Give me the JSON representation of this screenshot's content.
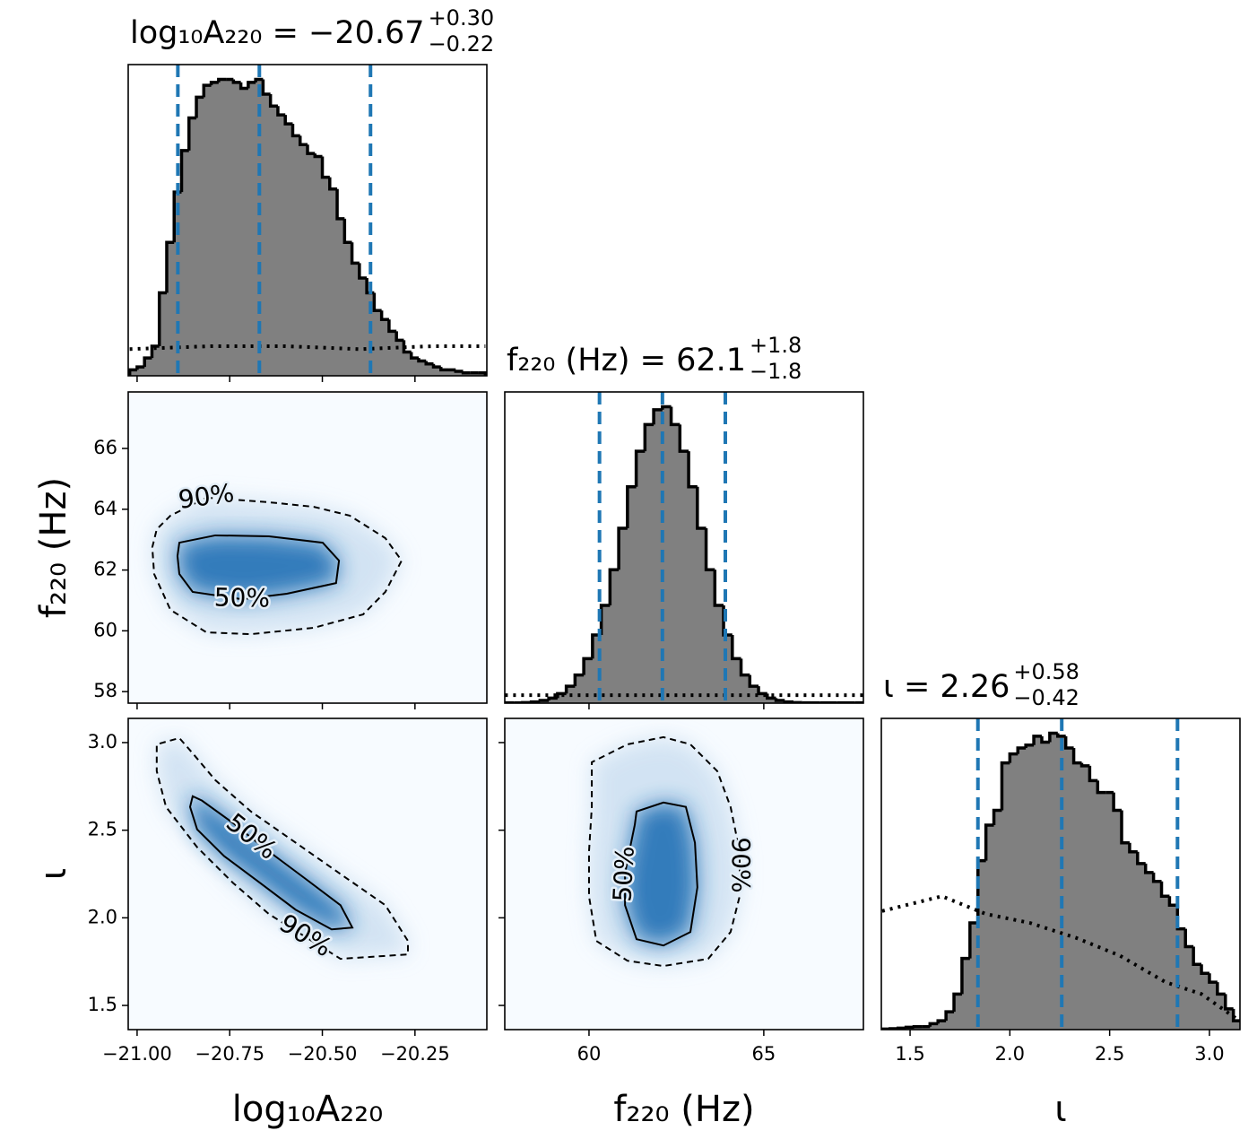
{
  "chart_data": [
    {
      "type": "histogram",
      "title": "log₁₀A₂₂₀ = −20.67",
      "title_upper": "+0.30",
      "title_lower": "−0.22",
      "bins": [
        -21.02,
        -21.0,
        -20.98,
        -20.96,
        -20.94,
        -20.92,
        -20.9,
        -20.88,
        -20.86,
        -20.84,
        -20.82,
        -20.8,
        -20.78,
        -20.76,
        -20.74,
        -20.72,
        -20.7,
        -20.68,
        -20.66,
        -20.64,
        -20.62,
        -20.6,
        -20.58,
        -20.56,
        -20.54,
        -20.52,
        -20.5,
        -20.48,
        -20.46,
        -20.44,
        -20.42,
        -20.4,
        -20.38,
        -20.36,
        -20.34,
        -20.32,
        -20.3,
        -20.28,
        -20.26,
        -20.24,
        -20.22,
        -20.2,
        -20.18,
        -20.16,
        -20.14,
        -20.12,
        -20.1,
        -20.08,
        -20.06
      ],
      "values": [
        0.02,
        0.03,
        0.06,
        0.1,
        0.28,
        0.45,
        0.62,
        0.76,
        0.87,
        0.94,
        0.98,
        0.99,
        1.0,
        1.0,
        0.99,
        0.97,
        0.99,
        1.0,
        0.95,
        0.91,
        0.88,
        0.85,
        0.81,
        0.78,
        0.75,
        0.74,
        0.67,
        0.63,
        0.53,
        0.45,
        0.38,
        0.33,
        0.28,
        0.22,
        0.19,
        0.15,
        0.12,
        0.08,
        0.06,
        0.05,
        0.04,
        0.03,
        0.02,
        0.02,
        0.015,
        0.01,
        0.01,
        0.01
      ],
      "color": "#808080",
      "edgecolor": "#000000",
      "quantiles": [
        -20.89,
        -20.67,
        -20.37
      ],
      "quantile_color": "#1f77b4",
      "prior": {
        "x": [
          -21.02,
          -20.8,
          -20.6,
          -20.4,
          -20.2,
          -20.06
        ],
        "values": [
          0.09,
          0.1,
          0.1,
          0.09,
          0.1,
          0.1
        ]
      },
      "xlim": [
        -21.024,
        -20.056
      ],
      "ylim": [
        0,
        1.05
      ],
      "xticks": [
        -21,
        -20.75,
        -20.5,
        -20.25
      ]
    },
    {
      "type": "contour",
      "background": "#f7fbff",
      "xlim": [
        -21.024,
        -20.056
      ],
      "ylim": [
        57.62,
        67.86
      ],
      "xticks": [
        -21,
        -20.75,
        -20.5,
        -20.25
      ],
      "yticks": [
        58,
        60,
        62,
        64,
        66
      ],
      "ylabel": "f₂₂₀ (Hz)",
      "contours": [
        {
          "label": "90%",
          "linestyle": "dashed",
          "fill": "#cfe1f2",
          "x": [
            -20.813,
            -20.644,
            -20.523,
            -20.426,
            -20.33,
            -20.286,
            -20.33,
            -20.39,
            -20.523,
            -20.693,
            -20.813,
            -20.91,
            -20.954,
            -20.959,
            -20.947,
            -20.91
          ],
          "y": [
            64.38,
            64.23,
            64.08,
            63.79,
            63.05,
            62.31,
            61.28,
            60.54,
            60.1,
            59.89,
            59.95,
            60.69,
            61.87,
            62.75,
            63.34,
            63.79
          ]
        },
        {
          "label": "50%",
          "linestyle": "solid",
          "fill": "#2171b5",
          "x": [
            -20.717,
            -20.85,
            -20.886,
            -20.891,
            -20.886,
            -20.789,
            -20.644,
            -20.499,
            -20.455,
            -20.463,
            -20.596
          ],
          "y": [
            61.04,
            61.28,
            61.87,
            62.46,
            62.9,
            63.14,
            63.11,
            62.9,
            62.31,
            61.57,
            61.22
          ]
        }
      ]
    },
    {
      "type": "histogram",
      "title": "f₂₂₀ (Hz) = 62.1",
      "title_upper": "+1.8",
      "title_lower": "−1.8",
      "bins": [
        57.6,
        57.85,
        58.1,
        58.35,
        58.6,
        58.85,
        59.1,
        59.35,
        59.6,
        59.85,
        60.1,
        60.35,
        60.6,
        60.85,
        61.1,
        61.35,
        61.6,
        61.85,
        62.1,
        62.35,
        62.6,
        62.85,
        63.1,
        63.35,
        63.6,
        63.85,
        64.1,
        64.35,
        64.6,
        64.85,
        65.1,
        65.35,
        65.6,
        65.85,
        66.1,
        66.35,
        66.6,
        66.85,
        67.1,
        67.35,
        67.6,
        67.85
      ],
      "values": [
        0.001,
        0.001,
        0.002,
        0.004,
        0.009,
        0.017,
        0.032,
        0.057,
        0.095,
        0.15,
        0.23,
        0.33,
        0.45,
        0.59,
        0.73,
        0.85,
        0.94,
        0.99,
        1.0,
        0.94,
        0.85,
        0.73,
        0.59,
        0.45,
        0.33,
        0.23,
        0.15,
        0.095,
        0.057,
        0.032,
        0.017,
        0.009,
        0.004,
        0.002,
        0.001,
        0.001,
        0.001,
        0.001,
        0.001,
        0.001,
        0.001
      ],
      "color": "#808080",
      "edgecolor": "#000000",
      "quantiles": [
        60.3,
        62.1,
        63.9
      ],
      "quantile_color": "#1f77b4",
      "prior": {
        "x": [
          57.6,
          67.85
        ],
        "values": [
          0.027,
          0.027
        ]
      },
      "xlim": [
        57.59,
        67.85
      ],
      "ylim": [
        0,
        1.05
      ],
      "xticks": [
        60,
        65
      ]
    },
    {
      "type": "contour",
      "background": "#f7fbff",
      "xlim": [
        -21.024,
        -20.056
      ],
      "ylim": [
        1.362,
        3.138
      ],
      "xticks": [
        {
          "value": -21,
          "label": "−21.00"
        },
        {
          "value": -20.75,
          "label": "−20.75"
        },
        {
          "value": -20.5,
          "label": "−20.50"
        },
        {
          "value": -20.25,
          "label": "−20.25"
        }
      ],
      "yticks": [
        1.5,
        {
          "value": 2,
          "label": "2.0"
        },
        2.5,
        {
          "value": 3,
          "label": "3.0"
        }
      ],
      "xlabel": "log₁₀A₂₂₀",
      "ylabel": "ι",
      "contours": [
        {
          "label": "90%",
          "linestyle": "dashed",
          "fill": "#cfe1f2",
          "x": [
            -20.547,
            -20.644,
            -20.741,
            -20.838,
            -20.922,
            -20.947,
            -20.947,
            -20.886,
            -20.85,
            -20.789,
            -20.693,
            -20.572,
            -20.451,
            -20.33,
            -20.269,
            -20.269,
            -20.378,
            -20.451
          ],
          "y": [
            1.893,
            2.021,
            2.199,
            2.403,
            2.633,
            2.837,
            2.99,
            3.026,
            2.939,
            2.786,
            2.607,
            2.429,
            2.25,
            2.072,
            1.868,
            1.791,
            1.776,
            1.766
          ]
        },
        {
          "label": "50%",
          "linestyle": "solid",
          "fill": "#2171b5",
          "x": [
            -20.693,
            -20.644,
            -20.547,
            -20.451,
            -20.419,
            -20.475,
            -20.572,
            -20.668,
            -20.765,
            -20.838,
            -20.857,
            -20.85,
            -20.825,
            -20.741
          ],
          "y": [
            2.459,
            2.378,
            2.225,
            2.072,
            1.944,
            1.934,
            2.046,
            2.199,
            2.352,
            2.505,
            2.633,
            2.694,
            2.669,
            2.541
          ]
        }
      ]
    },
    {
      "type": "contour",
      "background": "#f7fbff",
      "xlim": [
        57.59,
        67.85
      ],
      "ylim": [
        1.362,
        3.138
      ],
      "xticks": [
        60,
        65
      ],
      "yticks": [
        1.5,
        2,
        2.5,
        3
      ],
      "xlabel": "f₂₂₀ (Hz)",
      "contours": [
        {
          "label": "90%",
          "linestyle": "dashed",
          "fill": "#cfe1f2",
          "x": [
            64.31,
            64.31,
            64.05,
            63.41,
            62.13,
            61.1,
            60.21,
            60.0,
            60.0,
            60.08,
            60.08,
            61.1,
            62.13,
            62.9,
            63.67,
            64.05,
            64.31
          ],
          "y": [
            2.301,
            2.123,
            1.919,
            1.766,
            1.725,
            1.755,
            1.868,
            2.123,
            2.378,
            2.633,
            2.888,
            2.99,
            3.031,
            2.99,
            2.837,
            2.633,
            2.378
          ]
        },
        {
          "label": "50%",
          "linestyle": "solid",
          "fill": "#2171b5",
          "x": [
            61.03,
            61.03,
            61.36,
            62.13,
            62.9,
            63.1,
            63.03,
            62.77,
            62.13,
            61.36,
            61.31,
            61.1
          ],
          "y": [
            2.25,
            2.072,
            1.878,
            1.842,
            1.919,
            2.174,
            2.429,
            2.633,
            2.658,
            2.607,
            2.531,
            2.327
          ]
        }
      ]
    },
    {
      "type": "histogram",
      "title": "ι = 2.26",
      "title_upper": "+0.58",
      "title_lower": "−0.42",
      "bins": [
        1.36,
        1.4,
        1.44,
        1.48,
        1.52,
        1.56,
        1.6,
        1.64,
        1.68,
        1.72,
        1.76,
        1.8,
        1.84,
        1.88,
        1.92,
        1.96,
        2.0,
        2.04,
        2.08,
        2.12,
        2.16,
        2.2,
        2.24,
        2.28,
        2.32,
        2.36,
        2.4,
        2.44,
        2.48,
        2.52,
        2.56,
        2.6,
        2.64,
        2.68,
        2.72,
        2.76,
        2.8,
        2.84,
        2.88,
        2.92,
        2.96,
        3.0,
        3.04,
        3.08,
        3.12,
        3.16
      ],
      "values": [
        0.002,
        0.003,
        0.005,
        0.008,
        0.01,
        0.01,
        0.02,
        0.03,
        0.06,
        0.12,
        0.24,
        0.36,
        0.57,
        0.69,
        0.74,
        0.9,
        0.93,
        0.95,
        0.96,
        0.99,
        0.97,
        1.0,
        0.99,
        0.95,
        0.9,
        0.89,
        0.84,
        0.8,
        0.8,
        0.74,
        0.63,
        0.6,
        0.56,
        0.53,
        0.5,
        0.45,
        0.42,
        0.34,
        0.28,
        0.22,
        0.19,
        0.16,
        0.12,
        0.07,
        0.03
      ],
      "color": "#808080",
      "edgecolor": "#000000",
      "quantiles": [
        1.84,
        2.26,
        2.84
      ],
      "quantile_color": "#1f77b4",
      "prior": {
        "x": [
          1.36,
          1.66,
          1.88,
          2.1,
          2.33,
          2.55,
          2.78,
          2.96,
          3.15
        ],
        "values": [
          0.4,
          0.45,
          0.39,
          0.36,
          0.31,
          0.25,
          0.16,
          0.12,
          0.03
        ]
      },
      "xlim": [
        1.356,
        3.153
      ],
      "ylim": [
        0,
        1.05
      ],
      "xticks": [
        1.5,
        {
          "value": 2,
          "label": "2.0"
        },
        2.5,
        {
          "value": 3,
          "label": "3.0"
        }
      ],
      "xlabel": "ι"
    }
  ]
}
